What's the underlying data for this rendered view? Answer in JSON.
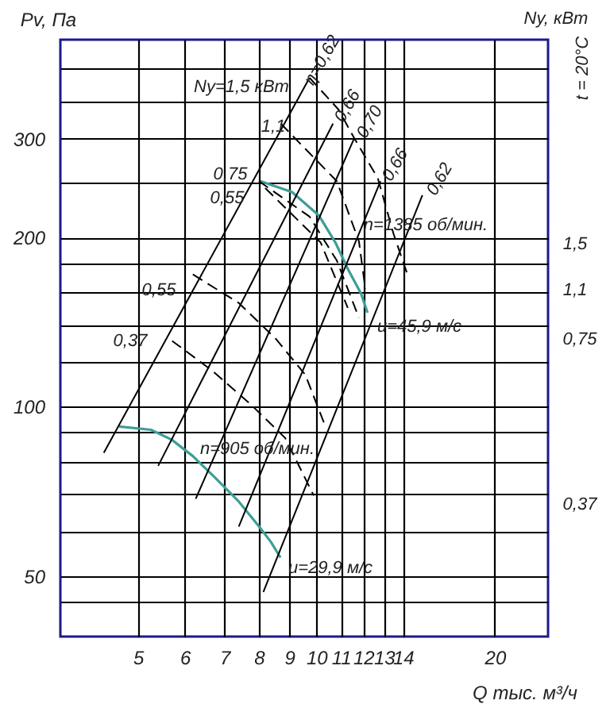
{
  "chart_data": {
    "type": "line",
    "xlabel": "Q тыс. м³/ч",
    "ylabel": "Pv, Па",
    "y2label": "Ny, кВт",
    "log": "xy",
    "grid": true,
    "xlim": [
      3.7,
      24.6
    ],
    "xticks": [
      5,
      6,
      7,
      8,
      9,
      10,
      11,
      12,
      13,
      14,
      20
    ],
    "ylim": [
      39,
      450
    ],
    "yticks": [
      {
        "value": 45,
        "label": null
      },
      50,
      {
        "value": 60,
        "label": null
      },
      {
        "value": 70,
        "label": null
      },
      {
        "value": 80,
        "label": null
      },
      {
        "value": 90,
        "label": null
      },
      100,
      {
        "value": 120,
        "label": null
      },
      {
        "value": 140,
        "label": null
      },
      {
        "value": 160,
        "label": null
      },
      {
        "value": 180,
        "label": null
      },
      200,
      {
        "value": 250,
        "label": null
      },
      300,
      {
        "value": 350,
        "label": null
      },
      {
        "value": 400,
        "label": null
      }
    ],
    "series": [
      {
        "color": "#3d9e96",
        "line_style": "solid",
        "x": [
          8.05,
          9.1,
          10.1,
          10.77,
          11.3,
          11.9,
          12.2
        ],
        "values": [
          252,
          241,
          219,
          196,
          176,
          159,
          147
        ]
      },
      {
        "color": "#3d9e96",
        "line_style": "solid",
        "x": [
          4.65,
          5.26,
          5.7,
          6.19,
          6.74,
          7.4,
          8.0,
          8.38,
          8.7
        ],
        "values": [
          92.2,
          91.0,
          87.4,
          81.7,
          74.9,
          67.8,
          61.3,
          57.5,
          53.9
        ]
      },
      {
        "color": "#000000",
        "line_style": "solid",
        "x": [
          4.38,
          9.74
        ],
        "values": [
          82.8,
          385
        ]
      },
      {
        "color": "#000000",
        "line_style": "solid",
        "x": [
          5.41,
          10.67
        ],
        "values": [
          78.5,
          319
        ]
      },
      {
        "color": "#000000",
        "line_style": "solid",
        "x": [
          6.26,
          11.58
        ],
        "values": [
          68.6,
          300
        ]
      },
      {
        "color": "#000000",
        "line_style": "solid",
        "x": [
          7.4,
          12.83
        ],
        "values": [
          61.2,
          252
        ]
      },
      {
        "color": "#000000",
        "line_style": "solid",
        "x": [
          8.14,
          15.1
        ],
        "values": [
          46.8,
          238
        ]
      },
      {
        "color": "#000000",
        "line_style": "dashed",
        "x": [
          9.74,
          10.9,
          11.6,
          12.7,
          13.5,
          14.3
        ],
        "values": [
          385,
          338,
          300,
          255,
          203,
          170
        ]
      },
      {
        "color": "#000000",
        "line_style": "dashed",
        "x": [
          8.71,
          10.83,
          11.8,
          12.1
        ],
        "values": [
          319,
          252,
          197,
          162
        ]
      },
      {
        "color": "#000000",
        "line_style": "dashed",
        "x": [
          8.0,
          9.74,
          10.83,
          11.8
        ],
        "values": [
          252,
          218,
          182,
          144
        ]
      },
      {
        "color": "#000000",
        "line_style": "dashed",
        "x": [
          8.2,
          10.17,
          11.3
        ],
        "values": [
          245,
          196,
          150
        ]
      },
      {
        "color": "#000000",
        "line_style": "dashed",
        "x": [
          6.19,
          7.4,
          8.55,
          9.58,
          10.37
        ],
        "values": [
          172,
          153,
          132,
          114,
          92
        ]
      },
      {
        "color": "#000000",
        "line_style": "dashed",
        "x": [
          5.71,
          6.67,
          7.75,
          8.86,
          9.9
        ],
        "values": [
          131,
          116,
          101,
          88,
          69.5
        ]
      }
    ],
    "annotations": [
      "Ny=1,5 кВт",
      "η=0,62",
      "0,66",
      "0,70",
      "0,66",
      "0,62",
      "1,1",
      "0,75",
      "0,55",
      "0,55",
      "0,37",
      "n=1385 об/мин.",
      "n=905 об/мин.",
      "u=45,9 м/с",
      "u=29,9 м/с",
      "1,5",
      "1,1",
      "0,75",
      "0,37",
      "t = 20°C"
    ]
  }
}
